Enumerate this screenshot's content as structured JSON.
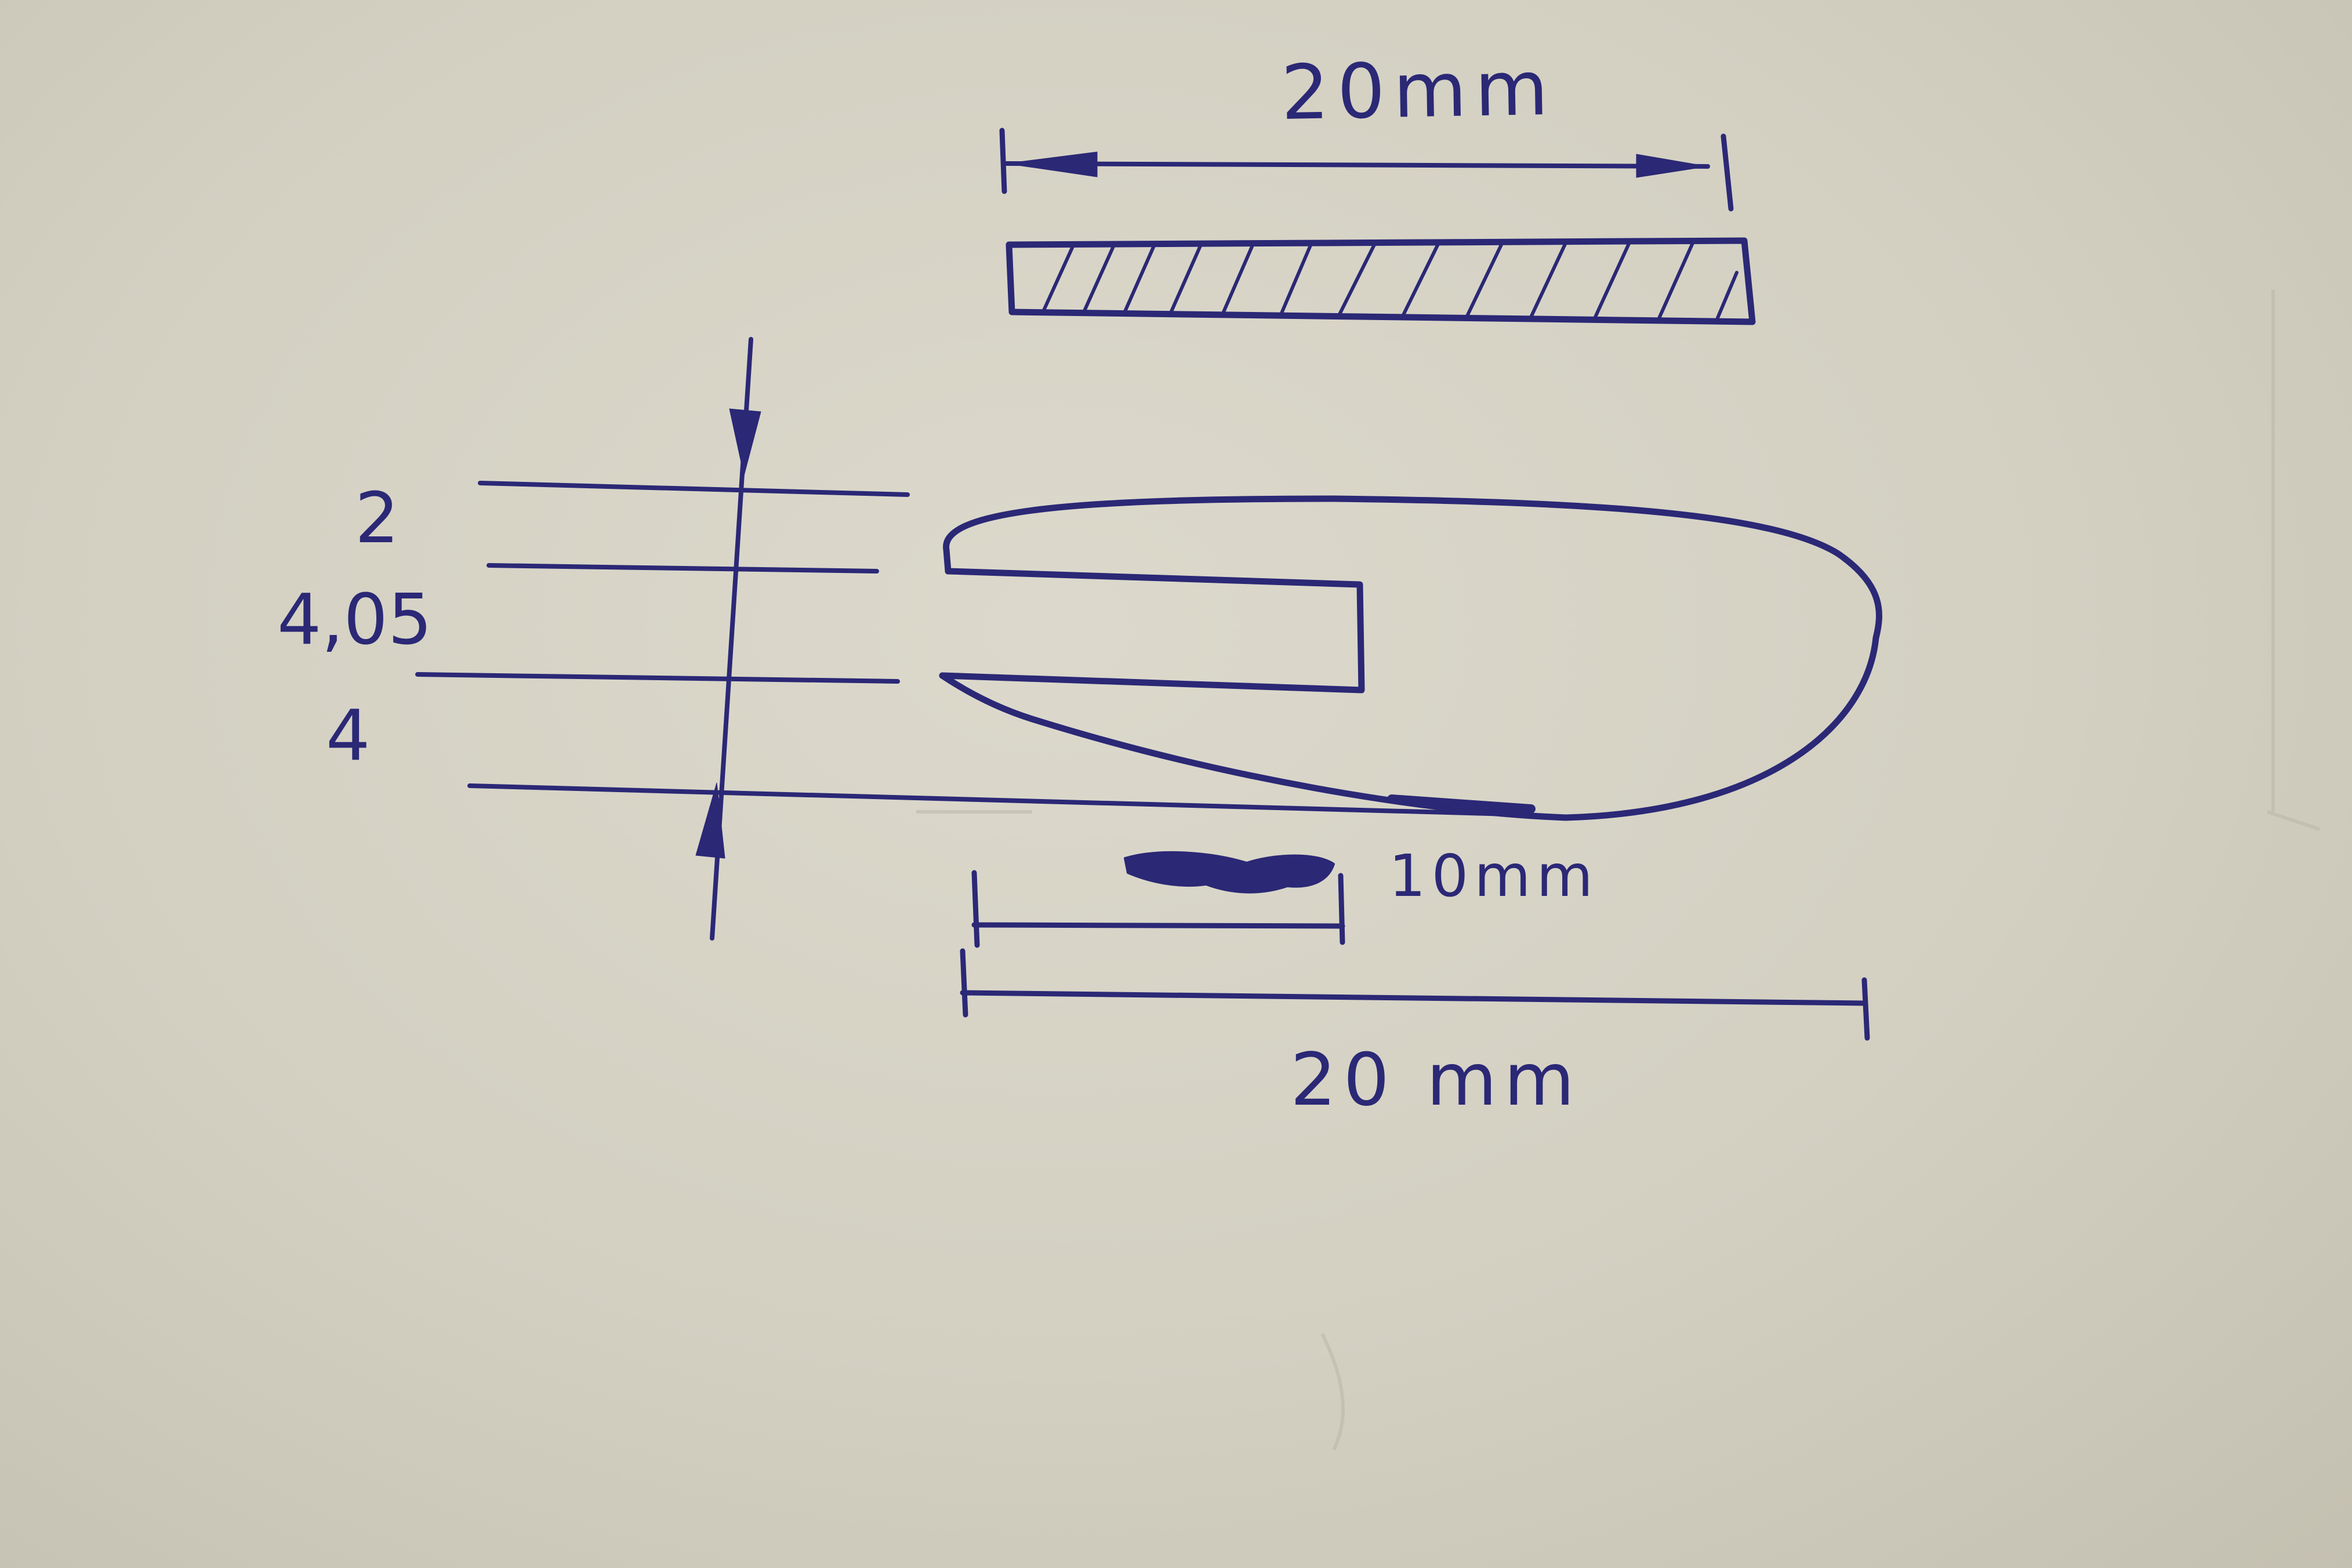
{
  "drawing": {
    "ink_color": "#2b2876",
    "paper_color": "#d6d3c6",
    "top_view": {
      "width_label": "20mm"
    },
    "profile_view": {
      "thickness_labels": [
        "2",
        "4,05",
        "4"
      ],
      "slot_depth_label": "10mm",
      "length_label": "20 mm"
    }
  }
}
